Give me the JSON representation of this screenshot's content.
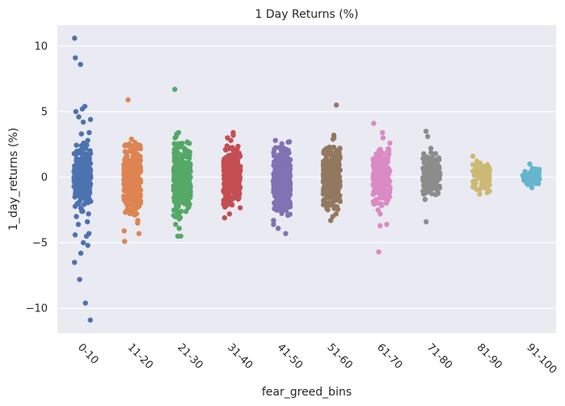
{
  "chart_data": {
    "type": "scatter",
    "subtype": "strip",
    "title": "1 Day Returns (%)",
    "xlabel": "fear_greed_bins",
    "ylabel": "1_day_returns (%)",
    "ylim": [
      -11.9,
      11.6
    ],
    "yticks": [
      10,
      5,
      0,
      -5,
      -10
    ],
    "ytick_labels": [
      "10",
      "5",
      "0",
      "−5",
      "−10"
    ],
    "grid": true,
    "background": "#EAEAF2",
    "categories": [
      "0-10",
      "11-20",
      "21-30",
      "31-40",
      "41-50",
      "51-60",
      "61-70",
      "71-80",
      "81-90",
      "91-100"
    ],
    "colors": [
      "#4C72B0",
      "#DD8452",
      "#55A868",
      "#C44E52",
      "#8172B3",
      "#937860",
      "#DA8BC3",
      "#8C8C8C",
      "#CCB974",
      "#64B5CD"
    ],
    "series": [
      {
        "category": "0-10",
        "n": 230,
        "dense_min": -2.5,
        "dense_max": 2.5,
        "outliers": [
          10.6,
          9.1,
          8.6,
          5.4,
          5.2,
          5.0,
          4.6,
          4.4,
          4.2,
          3.4,
          3.3,
          2.8,
          2.6,
          2.4,
          2.2,
          -2.6,
          -2.6,
          -2.8,
          -3.0,
          -3.4,
          -3.6,
          -4.3,
          -4.4,
          -4.5,
          -5.0,
          -5.2,
          -5.8,
          -6.5,
          -7.8,
          -9.6,
          -10.9
        ]
      },
      {
        "category": "11-20",
        "n": 310,
        "dense_min": -3.0,
        "dense_max": 2.7,
        "outliers": [
          5.9,
          2.9,
          -3.3,
          -3.5,
          -4.1,
          -4.3,
          -4.9
        ]
      },
      {
        "category": "21-30",
        "n": 360,
        "dense_min": -3.2,
        "dense_max": 2.7,
        "outliers": [
          6.7,
          3.4,
          3.3,
          3.1,
          3.0,
          -3.6,
          -3.9,
          -4.5,
          -4.5
        ]
      },
      {
        "category": "31-40",
        "n": 300,
        "dense_min": -2.4,
        "dense_max": 2.4,
        "outliers": [
          3.4,
          3.2,
          3.0,
          2.8,
          -2.8,
          -3.1
        ]
      },
      {
        "category": "41-50",
        "n": 360,
        "dense_min": -3.0,
        "dense_max": 2.7,
        "outliers": [
          2.8,
          -3.3,
          -3.6,
          -3.9,
          -4.3
        ]
      },
      {
        "category": "51-60",
        "n": 320,
        "dense_min": -2.5,
        "dense_max": 2.4,
        "outliers": [
          5.5,
          3.2,
          3.0,
          2.9,
          -2.8,
          -3.0,
          -3.3
        ]
      },
      {
        "category": "61-70",
        "n": 260,
        "dense_min": -2.2,
        "dense_max": 2.2,
        "outliers": [
          4.1,
          3.4,
          3.0,
          2.6,
          -2.5,
          -2.8,
          -3.6,
          -3.7,
          -5.7
        ]
      },
      {
        "category": "71-80",
        "n": 200,
        "dense_min": -1.5,
        "dense_max": 1.9,
        "outliers": [
          3.5,
          3.1,
          2.2,
          -1.7,
          -3.4
        ]
      },
      {
        "category": "81-90",
        "n": 90,
        "dense_min": -1.2,
        "dense_max": 1.4,
        "outliers": [
          1.6,
          -1.3
        ]
      },
      {
        "category": "91-100",
        "n": 70,
        "dense_min": -0.6,
        "dense_max": 0.7,
        "outliers": [
          1.0,
          -0.8
        ]
      }
    ]
  }
}
